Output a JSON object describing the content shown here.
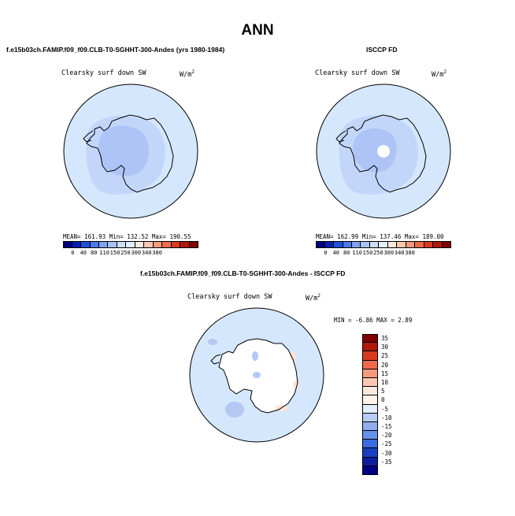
{
  "page_title": "ANN",
  "panels": [
    {
      "title": "f.e15b03ch.FAMIP.f09_f09.CLB-T0-SGHHT-300-Andes (yrs 1980-1984)",
      "variable": "Clearsky surf down SW",
      "units": "W/m",
      "units_sup": "2",
      "stats": "MEAN= 161.93   Min= 132.52   Max= 190.55",
      "mean": 161.93,
      "min": 132.52,
      "max": 190.55
    },
    {
      "title": "ISCCP FD",
      "variable": "Clearsky surf down SW",
      "units": "W/m",
      "units_sup": "2",
      "stats": "MEAN= 162.99   Min= 137.46   Max= 189.00",
      "mean": 162.99,
      "min": 137.46,
      "max": 189.0
    },
    {
      "title": "f.e15b03ch.FAMIP.f09_f09.CLB-T0-SGHHT-300-Andes - ISCCP FD",
      "variable": "Clearsky surf down SW",
      "units": "W/m",
      "units_sup": "2",
      "stats": "MIN = -6.86  MAX = 2.89",
      "min": -6.86,
      "max": 2.89
    }
  ],
  "colorbar_main": {
    "labels": [
      "0",
      "40",
      "80",
      "110",
      "150",
      "250",
      "300",
      "340",
      "380"
    ],
    "colors": [
      "#000080",
      "#0a1fb0",
      "#2050d8",
      "#4a7be8",
      "#7ea3f2",
      "#a8c2f5",
      "#cfddf8",
      "#e2eefc",
      "#fde8dc",
      "#fbc7b0",
      "#f59a7c",
      "#ee6a4c",
      "#d83a20",
      "#b01808",
      "#800000"
    ]
  },
  "colorbar_diff": {
    "labels": [
      "35",
      "30",
      "25",
      "20",
      "15",
      "10",
      "5",
      "0",
      "-5",
      "-10",
      "-15",
      "-20",
      "-25",
      "-30",
      "-35"
    ],
    "colors": [
      "#800000",
      "#b01808",
      "#d83a20",
      "#ee6a4c",
      "#f59a7c",
      "#fbc7b0",
      "#fde8dc",
      "#fdf2ec",
      "#e2eefc",
      "#b8cdf5",
      "#8eaef0",
      "#6690ea",
      "#3c6be0",
      "#1a40c0",
      "#0a1fa0",
      "#000080"
    ]
  },
  "map_colors": {
    "ocean": "#d5e7fc",
    "mid": "#c2d6fa",
    "plateau": "#aec3f6",
    "missing": "#ffffff",
    "warm": "#fbe4d6",
    "cool_patch": "#b4c8f4"
  }
}
